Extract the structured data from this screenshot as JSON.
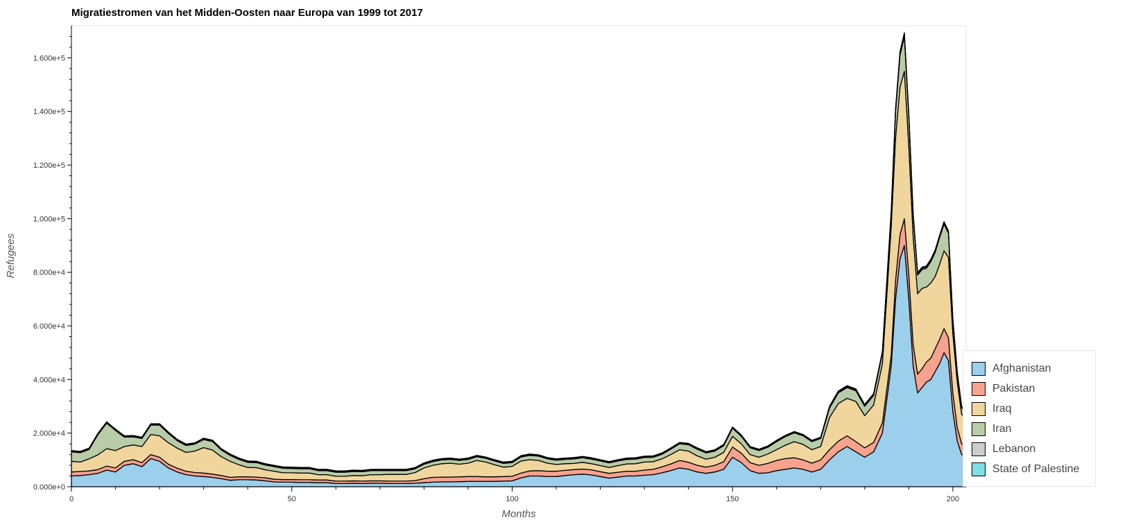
{
  "chart_data": {
    "type": "area",
    "stacked": true,
    "title": "Migratiestromen van het Midden-Oosten naar Europa van 1999 tot 2017",
    "xlabel": "Months",
    "ylabel": "Refugees",
    "xlim": [
      0,
      203
    ],
    "ylim": [
      0,
      172000
    ],
    "x_ticks": [
      0,
      50,
      100,
      150,
      200
    ],
    "x_tick_labels": [
      "0",
      "50",
      "100",
      "150",
      "200"
    ],
    "y_ticks": [
      0,
      20000,
      40000,
      60000,
      80000,
      100000,
      120000,
      140000,
      160000
    ],
    "y_tick_labels": [
      "0.000e+0",
      "2.000e+4",
      "4.000e+4",
      "6.000e+4",
      "8.000e+4",
      "1.000e+5",
      "1.200e+5",
      "1.400e+5",
      "1.600e+5"
    ],
    "legend_position": "bottom-right",
    "grid": false,
    "x": [
      0,
      2,
      4,
      6,
      8,
      10,
      12,
      14,
      16,
      18,
      20,
      22,
      24,
      26,
      28,
      30,
      32,
      34,
      36,
      38,
      40,
      42,
      44,
      46,
      48,
      50,
      52,
      54,
      56,
      58,
      60,
      62,
      64,
      66,
      68,
      70,
      72,
      74,
      76,
      78,
      80,
      82,
      84,
      86,
      88,
      90,
      92,
      94,
      96,
      98,
      100,
      102,
      104,
      106,
      108,
      110,
      112,
      114,
      116,
      118,
      120,
      122,
      124,
      126,
      128,
      130,
      132,
      134,
      136,
      138,
      140,
      142,
      144,
      146,
      148,
      150,
      152,
      154,
      156,
      158,
      160,
      162,
      164,
      166,
      168,
      170,
      172,
      174,
      176,
      178,
      180,
      182,
      184,
      186,
      187,
      188,
      189,
      190,
      191,
      192,
      193,
      194,
      195,
      196,
      197,
      198,
      199,
      200,
      201,
      202,
      203
    ],
    "series": [
      {
        "name": "Afghanistan",
        "color": "#9ccfeb",
        "values": [
          4000,
          4200,
          4500,
          5000,
          6200,
          5500,
          8000,
          8600,
          7500,
          10500,
          9500,
          7000,
          5500,
          4500,
          4000,
          3800,
          3500,
          3000,
          2400,
          2600,
          2600,
          2500,
          2200,
          1800,
          1700,
          1700,
          1600,
          1600,
          1500,
          1500,
          1200,
          1200,
          1300,
          1200,
          1300,
          1300,
          1200,
          1200,
          1200,
          1300,
          1500,
          1700,
          1800,
          1800,
          1900,
          2000,
          2000,
          2000,
          2000,
          2100,
          2200,
          3300,
          4000,
          4000,
          3800,
          3800,
          4200,
          4500,
          4700,
          4400,
          3800,
          3200,
          3600,
          4000,
          4000,
          4300,
          4500,
          5200,
          6000,
          7000,
          6500,
          5500,
          5000,
          5500,
          6500,
          11000,
          9000,
          6000,
          5000,
          5200,
          6000,
          6500,
          7000,
          6500,
          5500,
          6500,
          10000,
          13000,
          15000,
          13000,
          11000,
          13000,
          20000,
          45000,
          70000,
          85000,
          90000,
          70000,
          45000,
          35000,
          37000,
          39000,
          40000,
          43000,
          46000,
          50000,
          47000,
          28000,
          17000,
          12000,
          11000
        ]
      },
      {
        "name": "Pakistan",
        "color": "#f7a28f",
        "values": [
          1500,
          1500,
          1400,
          1400,
          1500,
          1500,
          1500,
          1500,
          1500,
          1500,
          1500,
          1400,
          1400,
          1300,
          1300,
          1300,
          1200,
          1200,
          1100,
          1100,
          1100,
          1100,
          1100,
          1000,
          1000,
          1000,
          1000,
          1000,
          1000,
          1000,
          900,
          900,
          900,
          900,
          900,
          900,
          900,
          900,
          900,
          1000,
          1500,
          1800,
          1800,
          1800,
          1800,
          1800,
          1800,
          1700,
          1700,
          1700,
          1700,
          1800,
          1900,
          2000,
          2000,
          2000,
          1900,
          1900,
          1900,
          1900,
          1800,
          1800,
          1800,
          1800,
          1800,
          1900,
          2000,
          2200,
          2500,
          2800,
          2600,
          2500,
          2300,
          2500,
          2800,
          3800,
          3500,
          3000,
          3000,
          3500,
          3800,
          4000,
          3800,
          3500,
          3300,
          3500,
          3800,
          4000,
          4000,
          3800,
          3500,
          3500,
          3800,
          4000,
          7000,
          9000,
          10000,
          9000,
          8000,
          7000,
          7000,
          7500,
          8000,
          8500,
          9000,
          9000,
          8500,
          7000,
          5000,
          4000,
          4000
        ]
      },
      {
        "name": "Iraq",
        "color": "#f0d69c",
        "values": [
          4000,
          3500,
          4500,
          5500,
          6500,
          6500,
          5500,
          5500,
          6000,
          7500,
          8000,
          8000,
          7500,
          7000,
          8000,
          9500,
          9000,
          7000,
          6000,
          4500,
          3500,
          3500,
          3000,
          3000,
          2500,
          2500,
          2500,
          2500,
          2000,
          2000,
          1800,
          1800,
          2000,
          2000,
          2300,
          2300,
          2500,
          2500,
          2500,
          3000,
          4000,
          4500,
          5000,
          5200,
          4700,
          5000,
          6000,
          5500,
          4500,
          3500,
          3700,
          4500,
          4200,
          3800,
          3000,
          2500,
          2500,
          2300,
          2500,
          2300,
          2300,
          2200,
          2500,
          2700,
          2800,
          3000,
          2800,
          3000,
          3500,
          4000,
          4200,
          3500,
          3000,
          3000,
          3500,
          4000,
          3500,
          3000,
          3000,
          3500,
          4000,
          5000,
          6000,
          5800,
          5000,
          5000,
          12000,
          14000,
          14000,
          15000,
          12000,
          14000,
          22000,
          48000,
          53000,
          55000,
          55000,
          48000,
          40000,
          30000,
          30000,
          28000,
          28000,
          27000,
          28000,
          29000,
          30000,
          22000,
          17000,
          11000,
          10000
        ]
      },
      {
        "name": "Iran",
        "color": "#b8cca8",
        "values": [
          3500,
          3500,
          3500,
          7500,
          9500,
          7500,
          3500,
          3000,
          3000,
          3500,
          4000,
          3500,
          2800,
          2600,
          2600,
          3000,
          3200,
          2500,
          2200,
          2000,
          1900,
          1900,
          1800,
          1700,
          1700,
          1600,
          1600,
          1600,
          1500,
          1500,
          1500,
          1500,
          1500,
          1500,
          1500,
          1500,
          1400,
          1400,
          1400,
          1400,
          1400,
          1400,
          1400,
          1400,
          1400,
          1400,
          1400,
          1400,
          1400,
          1400,
          1400,
          1500,
          1600,
          1600,
          1600,
          1600,
          1600,
          1700,
          1700,
          1700,
          1700,
          1700,
          1700,
          1700,
          1700,
          1700,
          1700,
          1700,
          2000,
          2200,
          2400,
          2500,
          2300,
          2300,
          2500,
          3000,
          2800,
          2500,
          2500,
          2500,
          3000,
          3200,
          3300,
          3200,
          3000,
          3000,
          3500,
          4000,
          4000,
          4000,
          3500,
          3500,
          4000,
          5000,
          10000,
          12000,
          13000,
          11000,
          8000,
          7000,
          7000,
          7000,
          8000,
          9000,
          10000,
          10000,
          9000,
          5000,
          3000,
          2500,
          2500
        ]
      },
      {
        "name": "Lebanon",
        "color": "#cccccc",
        "values": [
          300,
          300,
          300,
          300,
          300,
          300,
          300,
          300,
          300,
          300,
          300,
          300,
          300,
          300,
          300,
          300,
          300,
          300,
          300,
          300,
          300,
          300,
          300,
          300,
          300,
          300,
          300,
          300,
          300,
          300,
          300,
          300,
          300,
          300,
          300,
          300,
          300,
          300,
          300,
          300,
          300,
          300,
          300,
          300,
          300,
          300,
          300,
          300,
          300,
          300,
          300,
          300,
          300,
          300,
          300,
          300,
          300,
          300,
          300,
          300,
          300,
          300,
          300,
          300,
          300,
          300,
          300,
          300,
          300,
          300,
          300,
          300,
          300,
          300,
          300,
          300,
          300,
          300,
          300,
          300,
          300,
          300,
          300,
          300,
          300,
          300,
          400,
          400,
          400,
          400,
          400,
          400,
          400,
          500,
          700,
          800,
          800,
          700,
          600,
          500,
          500,
          500,
          500,
          500,
          500,
          500,
          500,
          400,
          400,
          300,
          300
        ]
      },
      {
        "name": "State of Palestine",
        "color": "#7fdfe6",
        "values": [
          200,
          200,
          200,
          200,
          200,
          200,
          200,
          200,
          200,
          200,
          200,
          200,
          200,
          200,
          200,
          200,
          200,
          200,
          200,
          200,
          200,
          200,
          200,
          200,
          200,
          200,
          200,
          200,
          200,
          200,
          200,
          200,
          200,
          200,
          200,
          200,
          200,
          200,
          200,
          200,
          200,
          200,
          200,
          200,
          200,
          200,
          200,
          200,
          200,
          200,
          200,
          200,
          200,
          200,
          200,
          200,
          200,
          200,
          200,
          200,
          200,
          200,
          200,
          200,
          200,
          200,
          200,
          200,
          200,
          200,
          200,
          200,
          200,
          200,
          200,
          200,
          200,
          200,
          200,
          200,
          200,
          200,
          200,
          200,
          200,
          200,
          300,
          300,
          300,
          300,
          300,
          300,
          300,
          400,
          500,
          600,
          600,
          500,
          500,
          400,
          400,
          400,
          400,
          400,
          400,
          400,
          400,
          300,
          300,
          200,
          200
        ]
      }
    ]
  }
}
